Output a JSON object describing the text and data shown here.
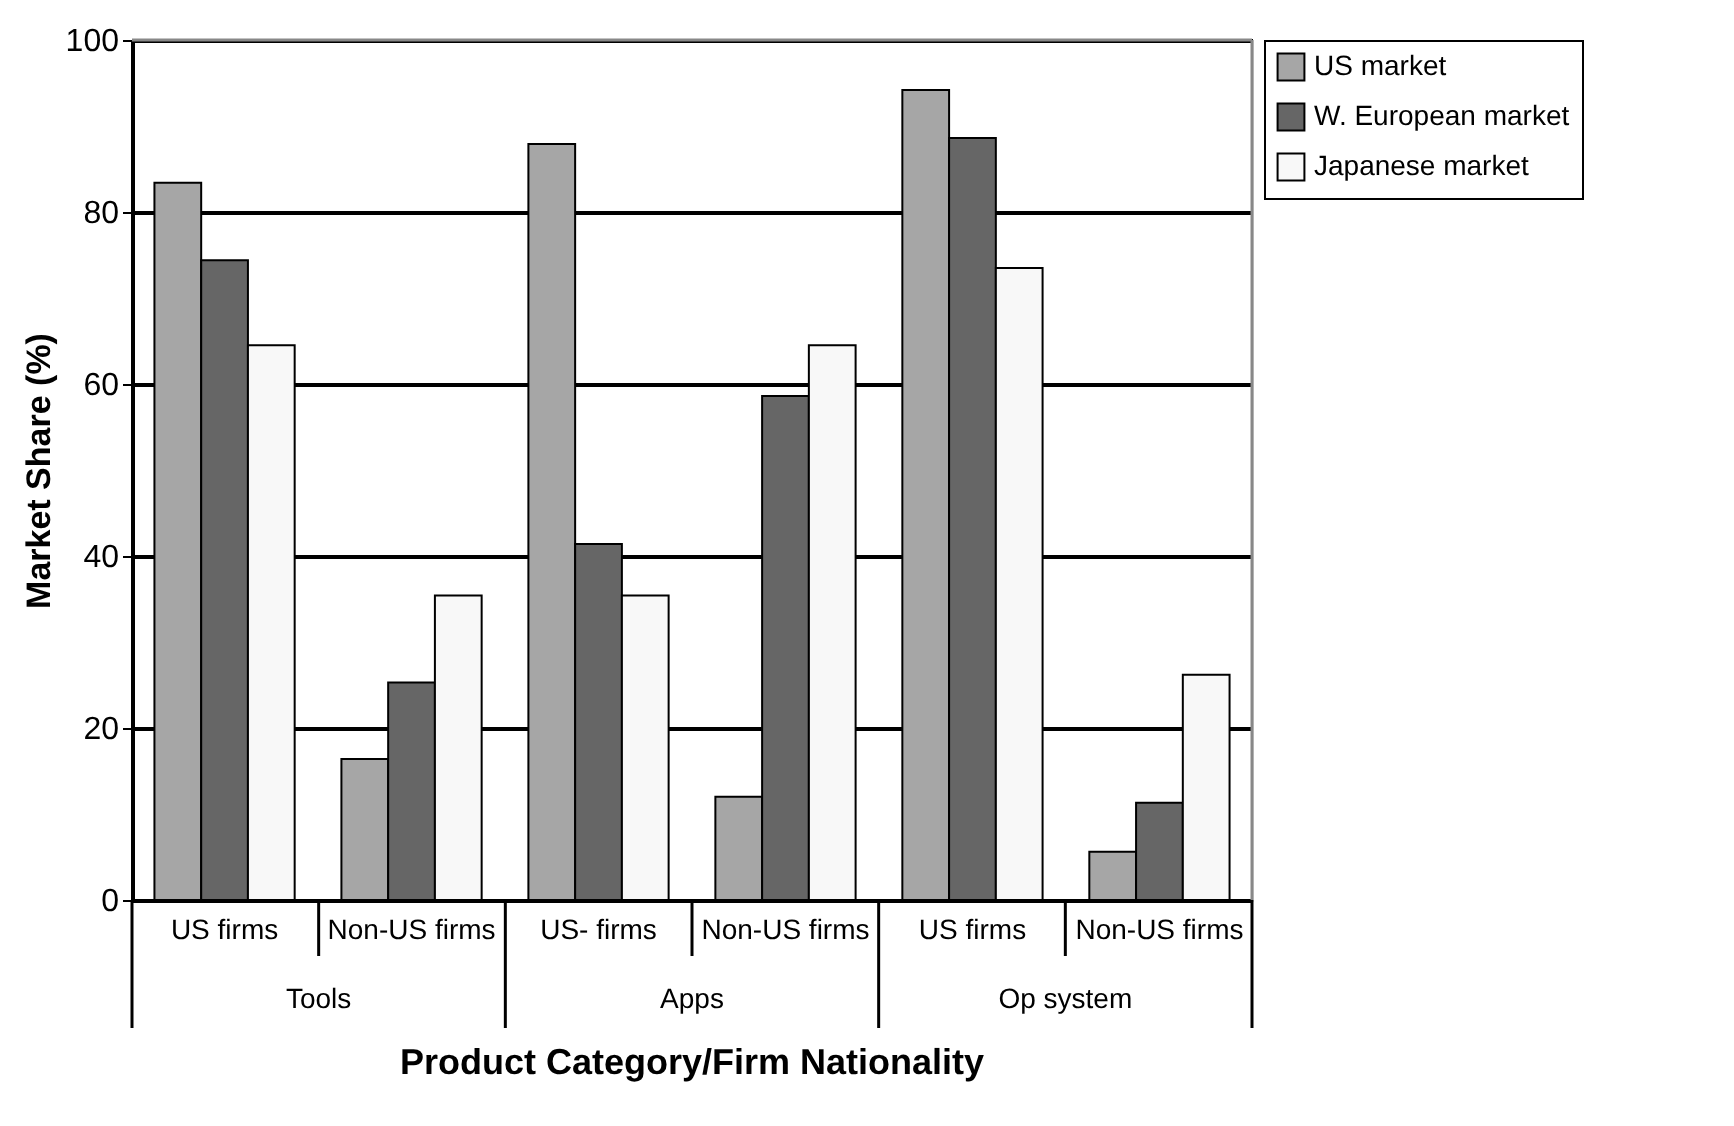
{
  "chart_data": {
    "type": "bar",
    "categories": [
      "US firms",
      "Non-US firms",
      "US- firms",
      "Non-US firms",
      "US  firms",
      "Non-US firms"
    ],
    "series": [
      {
        "name": "US market",
        "color": "#a6a6a6",
        "values": [
          83.4,
          16.4,
          87.9,
          12.0,
          94.2,
          5.6
        ]
      },
      {
        "name": "W. European market",
        "color": "#666666",
        "values": [
          74.4,
          25.3,
          41.4,
          58.6,
          88.6,
          11.3
        ]
      },
      {
        "name": "Japanese market",
        "color": "#f8f8f8",
        "values": [
          64.5,
          35.4,
          35.4,
          64.5,
          73.5,
          26.2
        ]
      }
    ],
    "annotations": [
      "Tools",
      "Apps",
      "Op system"
    ],
    "xlabel": "Product Category/Firm Nationality",
    "ylabel": "Market Share (%)",
    "ylim": [
      0,
      100
    ],
    "yticks": [
      0,
      20,
      40,
      60,
      80,
      100
    ],
    "grid": "y",
    "legend": "right"
  }
}
